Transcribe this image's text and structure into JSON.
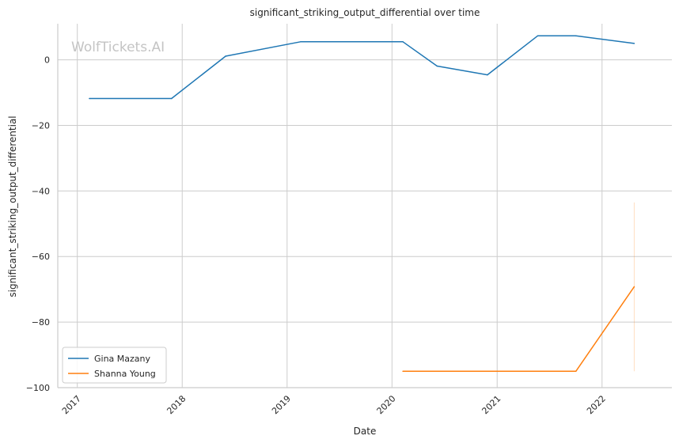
{
  "chart_data": {
    "type": "line",
    "title": "significant_striking_output_differential over time",
    "xlabel": "Date",
    "ylabel": "significant_striking_output_differential",
    "x_ticks": [
      "2017",
      "2018",
      "2019",
      "2020",
      "2021",
      "2022"
    ],
    "y_ticks": [
      0,
      -20,
      -40,
      -60,
      -80,
      -100
    ],
    "xlim": [
      "2016-10-25",
      "2022-09-01"
    ],
    "ylim": [
      -100,
      11
    ],
    "grid": true,
    "legend_position": "lower-left",
    "watermark": "WolfTickets.AI",
    "series": [
      {
        "name": "Gina Mazany",
        "color": "#1f77b4",
        "points": [
          {
            "x": "2017-02-12",
            "y": -11.8
          },
          {
            "x": "2017-11-25",
            "y": -11.8
          },
          {
            "x": "2018-06-01",
            "y": 1.1
          },
          {
            "x": "2019-02-17",
            "y": 5.5
          },
          {
            "x": "2020-02-08",
            "y": 5.5
          },
          {
            "x": "2020-06-06",
            "y": -1.9
          },
          {
            "x": "2020-11-28",
            "y": -4.6
          },
          {
            "x": "2021-05-22",
            "y": 7.3
          },
          {
            "x": "2021-10-02",
            "y": 7.3
          },
          {
            "x": "2022-04-23",
            "y": 5.0
          }
        ]
      },
      {
        "name": "Shanna Young",
        "color": "#ff7f0e",
        "points": [
          {
            "x": "2020-02-08",
            "y": -95
          },
          {
            "x": "2021-10-02",
            "y": -95
          },
          {
            "x": "2022-04-23",
            "y": -69.2
          }
        ],
        "error_band": {
          "x": "2022-04-23",
          "low": -95,
          "high": -43.5
        }
      }
    ]
  }
}
